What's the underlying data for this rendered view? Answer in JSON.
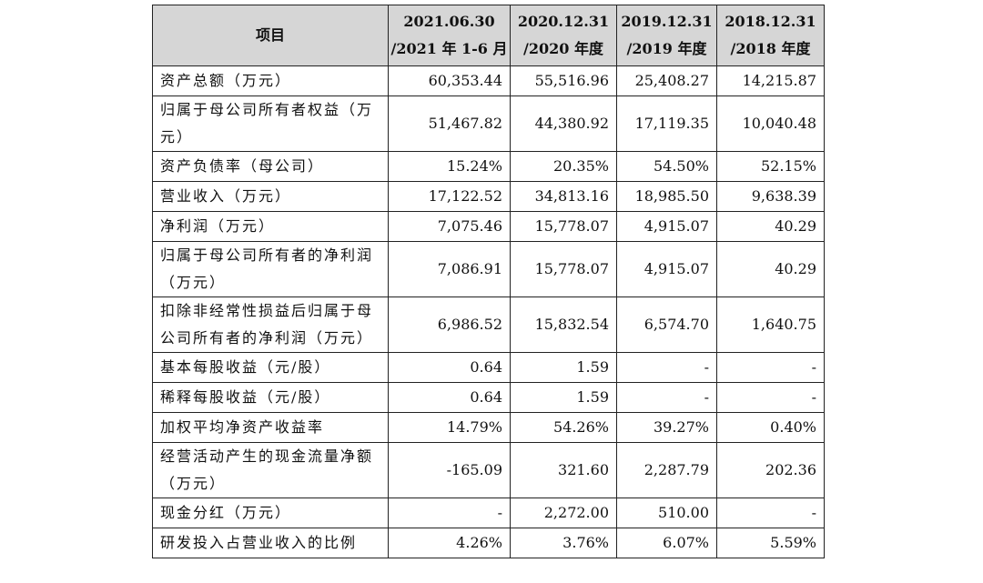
{
  "table": {
    "header": {
      "item": "项目",
      "columns": [
        [
          "2021.06.30",
          "/2021 年 1-6 月"
        ],
        [
          "2020.12.31",
          "/2020 年度"
        ],
        [
          "2019.12.31",
          "/2019 年度"
        ],
        [
          "2018.12.31",
          "/2018 年度"
        ]
      ]
    },
    "rows": [
      [
        "资产总额（万元）",
        "60,353.44",
        "55,516.96",
        "25,408.27",
        "14,215.87"
      ],
      [
        "归属于母公司所有者权益（万元）",
        "51,467.82",
        "44,380.92",
        "17,119.35",
        "10,040.48"
      ],
      [
        "资产负债率（母公司）",
        "15.24%",
        "20.35%",
        "54.50%",
        "52.15%"
      ],
      [
        "营业收入（万元）",
        "17,122.52",
        "34,813.16",
        "18,985.50",
        "9,638.39"
      ],
      [
        "净利润（万元）",
        "7,075.46",
        "15,778.07",
        "4,915.07",
        "40.29"
      ],
      [
        "归属于母公司所有者的净利润（万元）",
        "7,086.91",
        "15,778.07",
        "4,915.07",
        "40.29"
      ],
      [
        "扣除非经常性损益后归属于母公司所有者的净利润（万元）",
        "6,986.52",
        "15,832.54",
        "6,574.70",
        "1,640.75"
      ],
      [
        "基本每股收益（元/股）",
        "0.64",
        "1.59",
        "-",
        "-"
      ],
      [
        "稀释每股收益（元/股）",
        "0.64",
        "1.59",
        "-",
        "-"
      ],
      [
        "加权平均净资产收益率",
        "14.79%",
        "54.26%",
        "39.27%",
        "0.40%"
      ],
      [
        "经营活动产生的现金流量净额（万元）",
        "-165.09",
        "321.60",
        "2,287.79",
        "202.36"
      ],
      [
        "现金分红（万元）",
        "-",
        "2,272.00",
        "510.00",
        "-"
      ],
      [
        "研发投入占营业收入的比例",
        "4.26%",
        "3.76%",
        "6.07%",
        "5.59%"
      ]
    ]
  }
}
